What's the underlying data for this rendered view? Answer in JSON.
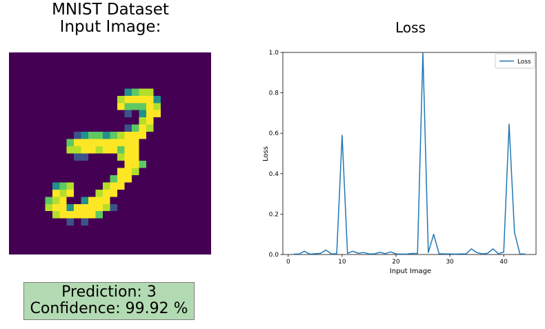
{
  "left_panel": {
    "title_line1": "MNIST Dataset",
    "title_line2": "Input Image:",
    "prediction_label": "Prediction: 3",
    "confidence_label": "Confidence: 99.92 %",
    "colors": {
      "background": "#440154",
      "low": "#3b528b",
      "mid": "#21918c",
      "high": "#5ec962",
      "peak": "#fde725"
    }
  },
  "chart_data": {
    "type": "line",
    "title": "Loss",
    "xlabel": "Input Image",
    "ylabel": "Loss",
    "xlim": [
      -1,
      46
    ],
    "ylim": [
      0,
      1.0
    ],
    "xticks": [
      0,
      10,
      20,
      30,
      40
    ],
    "yticks": [
      0.0,
      0.2,
      0.4,
      0.6,
      0.8,
      1.0
    ],
    "ytick_labels": [
      "0.0",
      "0.2",
      "0.4",
      "0.6",
      "0.8",
      "1.0"
    ],
    "grid": false,
    "legend_position": "top-right",
    "series": [
      {
        "name": "Loss",
        "color": "#1f77b4",
        "x": [
          1,
          2,
          3,
          4,
          5,
          6,
          7,
          8,
          9,
          10,
          11,
          12,
          13,
          14,
          15,
          16,
          17,
          18,
          19,
          20,
          21,
          22,
          23,
          24,
          25,
          26,
          27,
          28,
          29,
          30,
          31,
          32,
          33,
          34,
          35,
          36,
          37,
          38,
          39,
          40,
          41,
          42,
          43,
          44
        ],
        "y": [
          0.002,
          0.003,
          0.016,
          0.002,
          0.004,
          0.006,
          0.022,
          0.003,
          0.004,
          0.59,
          0.006,
          0.016,
          0.006,
          0.01,
          0.003,
          0.003,
          0.011,
          0.004,
          0.013,
          0.003,
          0.002,
          0.002,
          0.005,
          0.005,
          1.0,
          0.01,
          0.1,
          0.004,
          0.003,
          0.003,
          0.002,
          0.003,
          0.003,
          0.028,
          0.01,
          0.003,
          0.006,
          0.028,
          0.004,
          0.012,
          0.645,
          0.11,
          0.003,
          0.002
        ]
      }
    ]
  }
}
